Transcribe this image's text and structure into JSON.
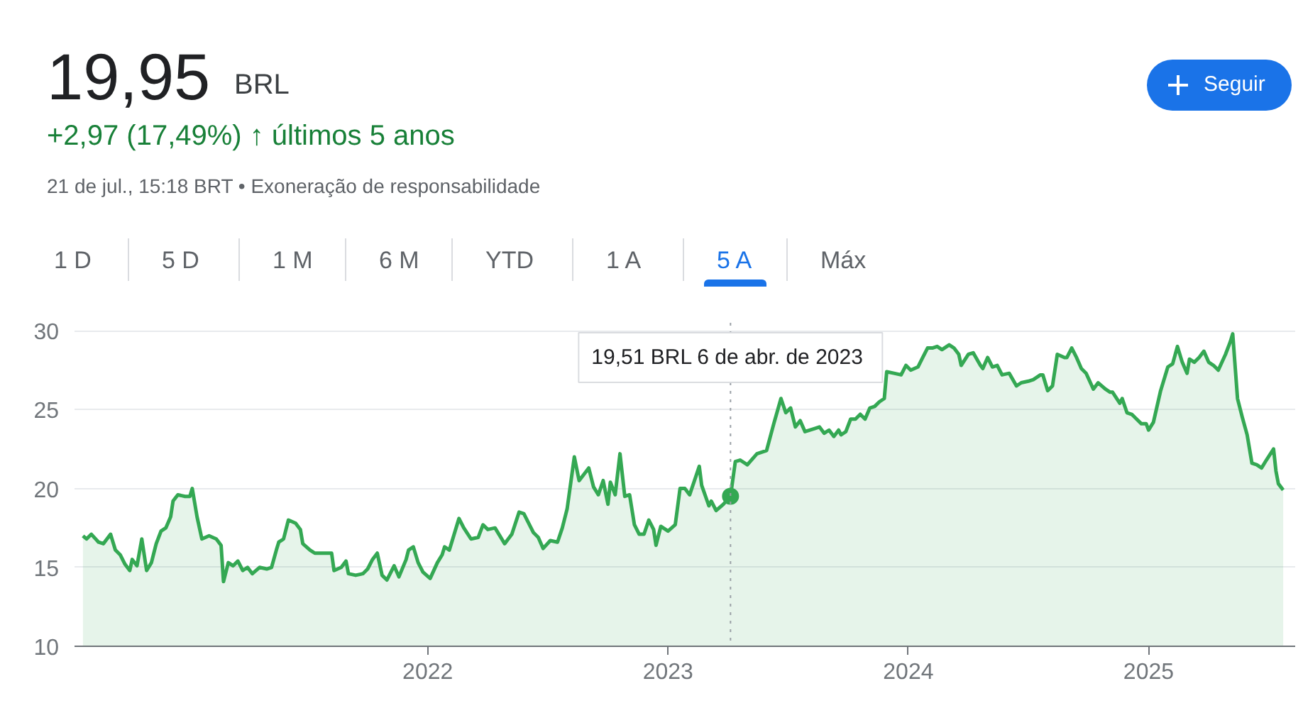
{
  "chart_data": {
    "type": "area",
    "title": "19,95",
    "subtitle": "+2,97 (17,49%) ↑ últimos 5 anos",
    "annotations": [
      "BRL",
      "21 de jul., 15:18 BRT • Exoneração de responsabilidade",
      "Seguir",
      "1 D",
      "5 D",
      "1 M",
      "6 M",
      "YTD",
      "1 A",
      "5 A",
      "Máx"
    ],
    "ref_lines": [
      {
        "axis": "x",
        "value": 2023.26,
        "label": "19,51 BRL  6 de abr. de 2023",
        "color": "#9aa0a6",
        "line_style": "dotted"
      }
    ],
    "xlim": [
      2020.53,
      2025.61
    ],
    "ylim": [
      10,
      30.5
    ],
    "xticks": [
      2022,
      2023,
      2024,
      2025
    ],
    "yticks": [
      10,
      15,
      20,
      25,
      30
    ],
    "grid": "y",
    "marker": "none",
    "line_style": "solid",
    "series": [
      {
        "color": "#34a853",
        "x": [
          2020.565,
          2020.58,
          2020.6,
          2020.63,
          2020.65,
          2020.68,
          2020.7,
          2020.72,
          2020.74,
          2020.76,
          2020.77,
          2020.79,
          2020.81,
          2020.83,
          2020.85,
          2020.87,
          2020.89,
          2020.91,
          2020.93,
          2020.94,
          2020.96,
          2020.99,
          2021.01,
          2021.02,
          2021.04,
          2021.06,
          2021.09,
          2021.12,
          2021.14,
          2021.15,
          2021.17,
          2021.19,
          2021.21,
          2021.23,
          2021.25,
          2021.27,
          2021.3,
          2021.33,
          2021.35,
          2021.37,
          2021.38,
          2021.4,
          2021.42,
          2021.45,
          2021.47,
          2021.48,
          2021.51,
          2021.53,
          2021.56,
          2021.6,
          2021.61,
          2021.64,
          2021.66,
          2021.67,
          2021.7,
          2021.73,
          2021.75,
          2021.77,
          2021.79,
          2021.81,
          2021.83,
          2021.86,
          2021.88,
          2021.91,
          2021.92,
          2021.94,
          2021.96,
          2021.98,
          2022.01,
          2022.04,
          2022.06,
          2022.07,
          2022.09,
          2022.11,
          2022.13,
          2022.15,
          2022.18,
          2022.21,
          2022.23,
          2022.25,
          2022.28,
          2022.32,
          2022.35,
          2022.38,
          2022.4,
          2022.44,
          2022.46,
          2022.48,
          2022.51,
          2022.54,
          2022.56,
          2022.58,
          2022.61,
          2022.63,
          2022.67,
          2022.69,
          2022.71,
          2022.73,
          2022.75,
          2022.76,
          2022.78,
          2022.8,
          2022.82,
          2022.84,
          2022.86,
          2022.88,
          2022.9,
          2022.92,
          2022.94,
          2022.95,
          2022.97,
          2023.0,
          2023.03,
          2023.05,
          2023.07,
          2023.09,
          2023.13,
          2023.14,
          2023.17,
          2023.18,
          2023.2,
          2023.23,
          2023.26,
          2023.28,
          2023.3,
          2023.33,
          2023.37,
          2023.39,
          2023.41,
          2023.44,
          2023.47,
          2023.49,
          2023.51,
          2023.53,
          2023.55,
          2023.57,
          2023.61,
          2023.63,
          2023.65,
          2023.67,
          2023.69,
          2023.71,
          2023.72,
          2023.74,
          2023.76,
          2023.78,
          2023.8,
          2023.82,
          2023.84,
          2023.86,
          2023.88,
          2023.9,
          2023.91,
          2023.94,
          2023.97,
          2023.99,
          2024.01,
          2024.04,
          2024.06,
          2024.08,
          2024.1,
          2024.12,
          2024.14,
          2024.17,
          2024.19,
          2024.21,
          2024.22,
          2024.25,
          2024.27,
          2024.3,
          2024.31,
          2024.33,
          2024.35,
          2024.37,
          2024.39,
          2024.42,
          2024.45,
          2024.47,
          2024.5,
          2024.52,
          2024.55,
          2024.56,
          2024.58,
          2024.6,
          2024.62,
          2024.65,
          2024.66,
          2024.68,
          2024.7,
          2024.72,
          2024.74,
          2024.77,
          2024.79,
          2024.82,
          2024.84,
          2024.85,
          2024.88,
          2024.89,
          2024.91,
          2024.93,
          2024.95,
          2024.97,
          2024.99,
          2025.0,
          2025.02,
          2025.05,
          2025.08,
          2025.1,
          2025.12,
          2025.14,
          2025.16,
          2025.17,
          2025.19,
          2025.21,
          2025.23,
          2025.25,
          2025.27,
          2025.29,
          2025.32,
          2025.34,
          2025.35,
          2025.37,
          2025.39,
          2025.41,
          2025.43,
          2025.45,
          2025.47,
          2025.49,
          2025.52,
          2025.53,
          2025.54,
          2025.56
        ],
        "values": [
          17.0,
          16.8,
          17.1,
          16.6,
          16.5,
          17.1,
          16.1,
          15.8,
          15.2,
          14.8,
          15.5,
          15.1,
          16.8,
          14.8,
          15.3,
          16.5,
          17.3,
          17.5,
          18.2,
          19.2,
          19.6,
          19.5,
          19.5,
          20.0,
          18.2,
          16.8,
          17.0,
          16.8,
          16.4,
          14.1,
          15.3,
          15.1,
          15.4,
          14.8,
          15.0,
          14.6,
          15.0,
          14.9,
          15.0,
          16.1,
          16.6,
          16.8,
          18.0,
          17.8,
          17.4,
          16.5,
          16.1,
          15.9,
          15.9,
          15.9,
          14.8,
          15.0,
          15.4,
          14.6,
          14.5,
          14.6,
          14.9,
          15.5,
          15.9,
          14.5,
          14.2,
          15.1,
          14.4,
          15.5,
          16.1,
          16.3,
          15.3,
          14.7,
          14.3,
          15.3,
          15.8,
          16.3,
          16.1,
          17.1,
          18.1,
          17.5,
          16.8,
          16.9,
          17.7,
          17.4,
          17.5,
          16.5,
          17.1,
          18.5,
          18.4,
          17.2,
          16.9,
          16.2,
          16.7,
          16.6,
          17.5,
          18.7,
          22.0,
          20.5,
          21.3,
          20.1,
          19.6,
          20.5,
          19.0,
          20.4,
          19.6,
          22.2,
          19.5,
          19.6,
          17.7,
          17.1,
          17.1,
          18.0,
          17.4,
          16.4,
          17.6,
          17.3,
          17.7,
          20.0,
          20.0,
          19.6,
          21.4,
          20.2,
          18.9,
          19.2,
          18.6,
          19.0,
          19.51,
          21.7,
          21.8,
          21.5,
          22.2,
          22.3,
          22.4,
          24.1,
          25.7,
          24.8,
          25.1,
          23.9,
          24.3,
          23.6,
          23.8,
          23.9,
          23.5,
          23.7,
          23.3,
          23.7,
          23.4,
          23.6,
          24.4,
          24.4,
          24.7,
          24.4,
          25.1,
          25.2,
          25.5,
          25.7,
          27.4,
          27.3,
          27.2,
          27.8,
          27.5,
          27.7,
          28.3,
          28.9,
          28.9,
          29.0,
          28.8,
          29.1,
          28.9,
          28.5,
          27.8,
          28.5,
          28.6,
          27.8,
          27.6,
          28.3,
          27.7,
          27.8,
          27.2,
          27.3,
          26.5,
          26.7,
          26.8,
          26.9,
          27.2,
          27.2,
          26.2,
          26.5,
          28.5,
          28.3,
          28.3,
          28.9,
          28.3,
          27.6,
          27.3,
          26.3,
          26.7,
          26.3,
          26.1,
          26.1,
          25.4,
          25.7,
          24.8,
          24.7,
          24.4,
          24.1,
          24.1,
          23.7,
          24.2,
          26.2,
          27.7,
          27.9,
          29.0,
          28.0,
          27.3,
          28.2,
          28.0,
          28.3,
          28.7,
          28.0,
          27.8,
          27.5,
          28.5,
          29.3,
          29.8,
          25.7,
          24.5,
          23.4,
          21.6,
          21.5,
          21.3,
          21.8,
          22.5,
          21.1,
          20.3,
          19.9
        ]
      }
    ]
  }
}
